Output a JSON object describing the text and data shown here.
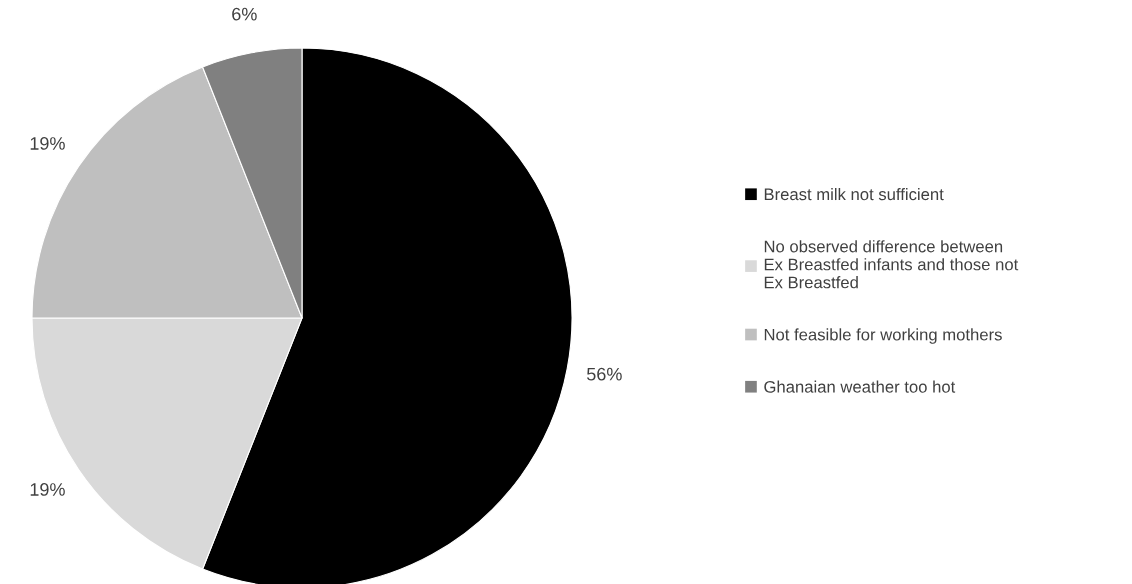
{
  "chart_data": {
    "type": "pie",
    "categories": [
      "Breast milk not sufficient",
      "No observed difference between\nEx Breastfed infants and those not\nEx Breastfed",
      "Not feasible for working mothers",
      "Ghanaian weather too hot"
    ],
    "values": [
      56,
      19,
      19,
      6
    ],
    "colors": [
      "#000000",
      "#d9d9d9",
      "#bfbfbf",
      "#808080"
    ],
    "value_labels": [
      "56%",
      "19%",
      "19%",
      "6%"
    ],
    "legend": "right"
  }
}
